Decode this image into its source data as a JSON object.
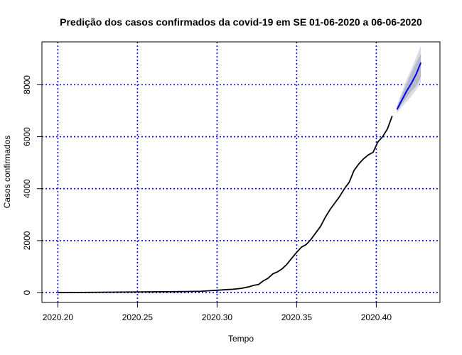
{
  "chart_data": {
    "type": "line",
    "title": "Predição dos casos confirmados da covid-19 em SE 01-06-2020 a 06-06-2020",
    "xlabel": "Tempo",
    "ylabel": "Casos confirmados",
    "xlim": [
      2020.19,
      2020.44
    ],
    "ylim": [
      -380,
      9650
    ],
    "x_ticks": [
      {
        "value": 2020.2,
        "label": "2020.20"
      },
      {
        "value": 2020.25,
        "label": "2020.25"
      },
      {
        "value": 2020.3,
        "label": "2020.30"
      },
      {
        "value": 2020.35,
        "label": "2020.35"
      },
      {
        "value": 2020.4,
        "label": "2020.40"
      }
    ],
    "y_ticks": [
      {
        "value": 0,
        "label": "0"
      },
      {
        "value": 2000,
        "label": "2000"
      },
      {
        "value": 4000,
        "label": "4000"
      },
      {
        "value": 6000,
        "label": "6000"
      },
      {
        "value": 8000,
        "label": "8000"
      }
    ],
    "grid": {
      "on": true,
      "color": "#0000ff",
      "style": "dotted"
    },
    "series": [
      {
        "color": "#000000",
        "x": [
          2020.2,
          2020.22,
          2020.24,
          2020.26,
          2020.28,
          2020.29,
          2020.295,
          2020.3,
          2020.305,
          2020.31,
          2020.315,
          2020.32,
          2020.323,
          2020.326,
          2020.329,
          2020.332,
          2020.335,
          2020.338,
          2020.341,
          2020.344,
          2020.347,
          2020.35,
          2020.353,
          2020.356,
          2020.359,
          2020.362,
          2020.365,
          2020.368,
          2020.371,
          2020.374,
          2020.377,
          2020.38,
          2020.383,
          2020.386,
          2020.389,
          2020.392,
          2020.395,
          2020.398,
          2020.401,
          2020.404,
          2020.407,
          2020.41
        ],
        "values": [
          0,
          10,
          20,
          30,
          40,
          50,
          70,
          90,
          110,
          130,
          160,
          220,
          280,
          310,
          450,
          550,
          720,
          800,
          920,
          1100,
          1330,
          1550,
          1750,
          1850,
          2050,
          2300,
          2550,
          2900,
          3200,
          3450,
          3700,
          4000,
          4250,
          4700,
          4950,
          5150,
          5300,
          5400,
          5800,
          6000,
          6300,
          6800
        ]
      },
      {
        "color": "#0000ff",
        "x": [
          2020.413,
          2020.416,
          2020.419,
          2020.422,
          2020.425,
          2020.428
        ],
        "values": [
          7050,
          7400,
          7750,
          8050,
          8400,
          8850
        ],
        "upper80": [
          7150,
          7600,
          8050,
          8450,
          8850,
          9200
        ],
        "lower80": [
          6950,
          7250,
          7500,
          7750,
          7950,
          8300
        ],
        "upper95": [
          7200,
          7700,
          8200,
          8600,
          9050,
          9500
        ],
        "lower95": [
          6900,
          7150,
          7350,
          7550,
          7800,
          8100
        ]
      }
    ]
  }
}
